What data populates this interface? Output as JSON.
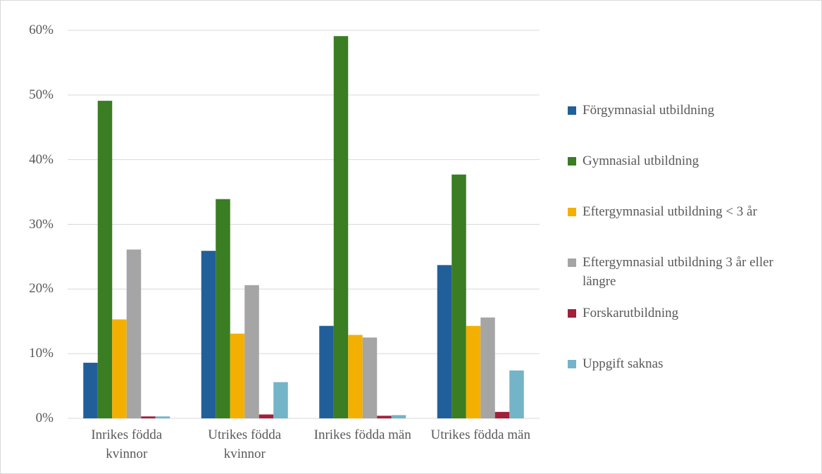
{
  "chart_data": {
    "type": "bar",
    "categories": [
      "Inrikes födda kvinnor",
      "Utrikes födda kvinnor",
      "Inrikes födda män",
      "Utrikes födda män"
    ],
    "series": [
      {
        "name": "Förgymnasial utbildning",
        "color": "#215f9a",
        "values": [
          8.6,
          25.9,
          14.3,
          23.7
        ]
      },
      {
        "name": "Gymnasial utbildning",
        "color": "#3a7d22",
        "values": [
          49.1,
          33.9,
          59.1,
          37.7
        ]
      },
      {
        "name": "Eftergymnasial utbildning < 3 år",
        "color": "#f4b000",
        "values": [
          15.3,
          13.1,
          12.9,
          14.3
        ]
      },
      {
        "name": "Eftergymnasial utbildning 3 år eller längre",
        "color": "#a5a5a5",
        "values": [
          26.1,
          20.6,
          12.5,
          15.6
        ]
      },
      {
        "name": "Forskarutbildning",
        "color": "#a1203a",
        "values": [
          0.3,
          0.6,
          0.4,
          1.0
        ]
      },
      {
        "name": "Uppgift saknas",
        "color": "#74b4c8",
        "values": [
          0.3,
          5.6,
          0.5,
          7.4
        ]
      }
    ],
    "ylim": [
      0,
      60
    ],
    "yticks": [
      {
        "value": 0,
        "label": "0%"
      },
      {
        "value": 10,
        "label": "10%"
      },
      {
        "value": 20,
        "label": "20%"
      },
      {
        "value": 30,
        "label": "30%"
      },
      {
        "value": 40,
        "label": "40%"
      },
      {
        "value": 50,
        "label": "50%"
      },
      {
        "value": 60,
        "label": "60%"
      }
    ],
    "grid": true,
    "legend": "right"
  }
}
